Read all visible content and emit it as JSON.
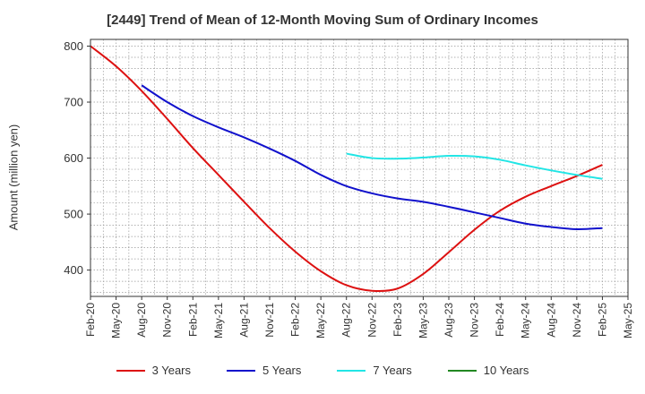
{
  "chart_data": {
    "type": "line",
    "title": "[2449]  Trend of Mean of 12-Month Moving Sum of Ordinary Incomes",
    "xlabel": "",
    "ylabel": "Amount (million yen)",
    "ylim": [
      353,
      812
    ],
    "yticks": [
      400,
      500,
      600,
      700,
      800
    ],
    "categories": [
      "Feb-20",
      "May-20",
      "Aug-20",
      "Nov-20",
      "Feb-21",
      "May-21",
      "Aug-21",
      "Nov-21",
      "Feb-22",
      "May-22",
      "Aug-22",
      "Nov-22",
      "Feb-23",
      "May-23",
      "Aug-23",
      "Nov-23",
      "Feb-24",
      "May-24",
      "Aug-24",
      "Nov-24",
      "Feb-25",
      "May-25"
    ],
    "series": [
      {
        "name": "3 Years",
        "color": "#dd1111",
        "values": [
          800,
          764,
          720,
          670,
          618,
          570,
          522,
          475,
          433,
          398,
          373,
          363,
          367,
          393,
          432,
          472,
          506,
          531,
          550,
          568,
          588,
          null
        ]
      },
      {
        "name": "5 Years",
        "color": "#1111cc",
        "values": [
          null,
          null,
          730,
          700,
          675,
          655,
          637,
          617,
          595,
          570,
          550,
          537,
          528,
          522,
          513,
          503,
          493,
          483,
          477,
          473,
          475,
          null
        ]
      },
      {
        "name": "7 Years",
        "color": "#22e5e5",
        "values": [
          null,
          null,
          null,
          null,
          null,
          null,
          null,
          null,
          null,
          null,
          608,
          600,
          599,
          601,
          604,
          603,
          597,
          587,
          578,
          570,
          563,
          null
        ]
      },
      {
        "name": "10 Years",
        "color": "#228822",
        "values": [
          null,
          null,
          null,
          null,
          null,
          null,
          null,
          null,
          null,
          null,
          null,
          null,
          null,
          null,
          null,
          null,
          null,
          null,
          null,
          null,
          null,
          null
        ]
      }
    ]
  }
}
